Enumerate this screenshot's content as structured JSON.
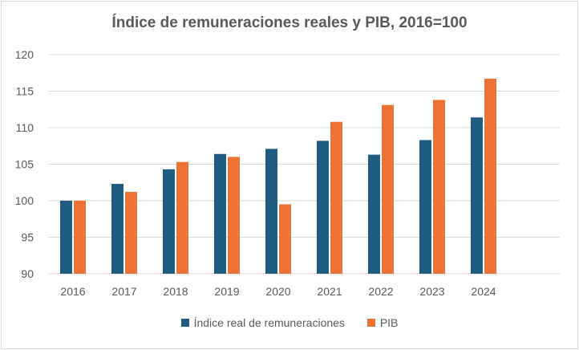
{
  "chart_data": {
    "type": "bar",
    "title": "Índice de remuneraciones reales y PIB, 2016=100",
    "categories": [
      "2016",
      "2017",
      "2018",
      "2019",
      "2020",
      "2021",
      "2022",
      "2023",
      "2024"
    ],
    "series": [
      {
        "name": "Índice real de remuneraciones",
        "color": "#1f5c7f",
        "values": [
          100.0,
          102.3,
          104.3,
          106.4,
          107.1,
          108.2,
          106.3,
          108.3,
          111.4
        ]
      },
      {
        "name": "PIB",
        "color": "#ea7335",
        "values": [
          100.0,
          101.2,
          105.3,
          106.0,
          99.5,
          110.8,
          113.1,
          113.8,
          116.7
        ]
      }
    ],
    "yticks": [
      "90",
      "95",
      "100",
      "105",
      "110",
      "115",
      "120"
    ],
    "ylim": [
      90,
      120
    ],
    "grid": true,
    "legend_position": "bottom"
  }
}
